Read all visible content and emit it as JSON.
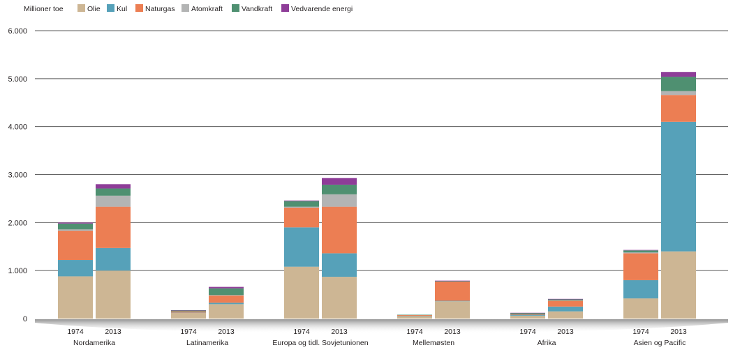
{
  "chart_data": {
    "type": "bar",
    "stacked": true,
    "unit_label": "Millioner toe",
    "ylim": [
      0,
      6000
    ],
    "y_ticks": [
      {
        "value": 0,
        "label": "0"
      },
      {
        "value": 1000,
        "label": "1.000"
      },
      {
        "value": 2000,
        "label": "2.000"
      },
      {
        "value": 3000,
        "label": "3.000"
      },
      {
        "value": 4000,
        "label": "4.000"
      },
      {
        "value": 5000,
        "label": "5.000"
      },
      {
        "value": 6000,
        "label": "6.000"
      }
    ],
    "grid": true,
    "legend_position": "top-left",
    "series": [
      {
        "name": "Olie",
        "color": "#cdb694"
      },
      {
        "name": "Kul",
        "color": "#56a1b9"
      },
      {
        "name": "Naturgas",
        "color": "#ec7e53"
      },
      {
        "name": "Atomkraft",
        "color": "#b3b4b4"
      },
      {
        "name": "Vandkraft",
        "color": "#4f9071"
      },
      {
        "name": "Vedvarende energi",
        "color": "#8e3d98"
      }
    ],
    "groups": [
      {
        "name": "Nordamerika",
        "bars": [
          {
            "year": "1974",
            "values": [
              880,
              340,
              610,
              30,
              120,
              20
            ]
          },
          {
            "year": "2013",
            "values": [
              1000,
              470,
              860,
              230,
              150,
              90
            ]
          }
        ]
      },
      {
        "name": "Latinamerika",
        "bars": [
          {
            "year": "1974",
            "values": [
              120,
              5,
              25,
              0,
              20,
              5
            ]
          },
          {
            "year": "2013",
            "values": [
              300,
              30,
              150,
              10,
              140,
              30
            ]
          }
        ]
      },
      {
        "name": "Europa og tidl. Sovjetunionen",
        "bars": [
          {
            "year": "1974",
            "values": [
              1080,
              820,
              410,
              20,
              120,
              10
            ]
          },
          {
            "year": "2013",
            "values": [
              870,
              490,
              970,
              260,
              200,
              140
            ]
          }
        ]
      },
      {
        "name": "Mellemøsten",
        "bars": [
          {
            "year": "1974",
            "values": [
              55,
              2,
              15,
              0,
              8,
              0
            ]
          },
          {
            "year": "2013",
            "values": [
              360,
              10,
              400,
              0,
              10,
              10
            ]
          }
        ]
      },
      {
        "name": "Afrika",
        "bars": [
          {
            "year": "1974",
            "values": [
              60,
              20,
              15,
              0,
              20,
              5
            ]
          },
          {
            "year": "2013",
            "values": [
              150,
              100,
              120,
              10,
              20,
              10
            ]
          }
        ]
      },
      {
        "name": "Asien og Pacific",
        "bars": [
          {
            "year": "1974",
            "values": [
              420,
              380,
              560,
              20,
              40,
              10
            ]
          },
          {
            "year": "2013",
            "values": [
              1400,
              2700,
              560,
              80,
              300,
              100
            ]
          }
        ]
      }
    ]
  }
}
